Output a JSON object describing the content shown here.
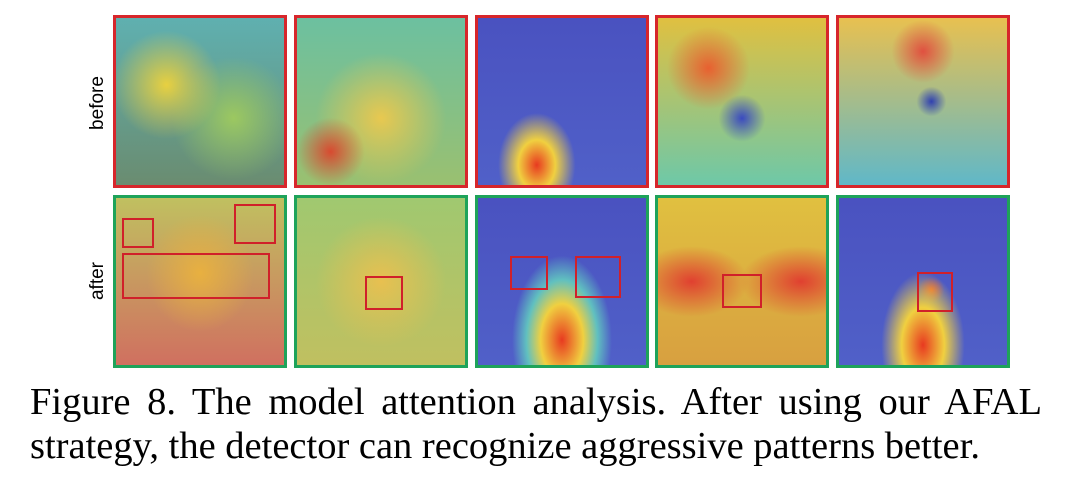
{
  "figure": {
    "row_labels": [
      "before",
      "after"
    ],
    "caption": {
      "lines": [
        "Figure 8.  The model attention analysis.  After using our AFAL",
        "strategy, the detector can recognize aggressive patterns better."
      ]
    }
  }
}
